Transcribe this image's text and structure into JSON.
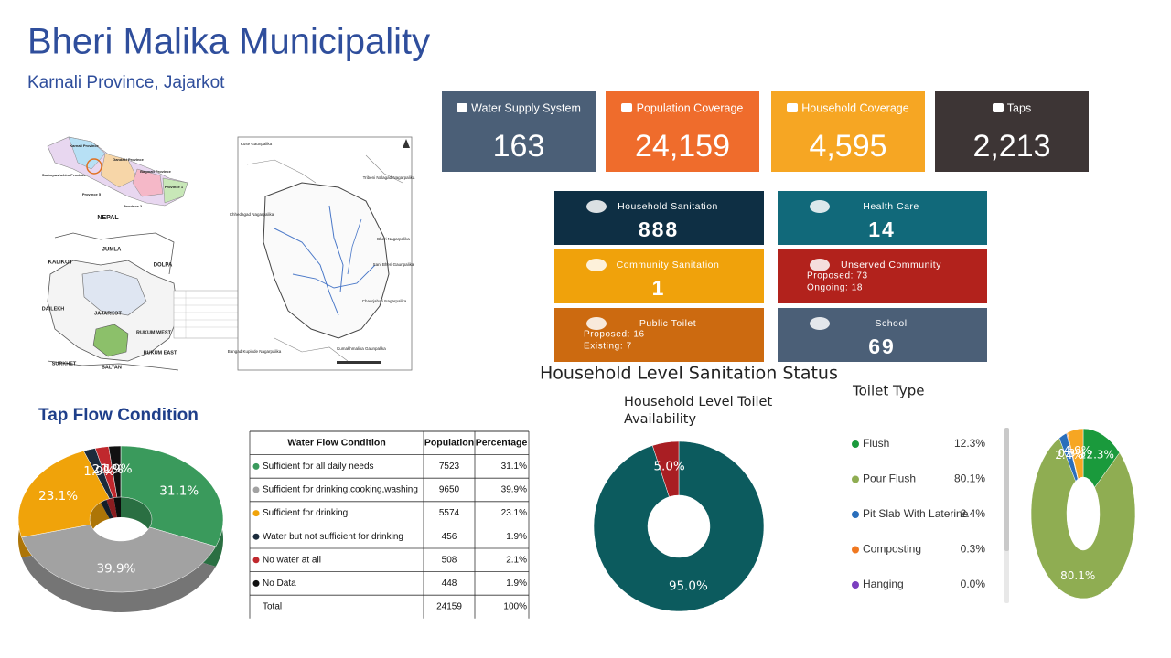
{
  "header": {
    "title": "Bheri Malika Municipality",
    "subtitle": "Karnali Province, Jajarkot"
  },
  "maps": {
    "left_labels": [
      "NEPAL",
      "Karnali Province",
      "Gandaki Province",
      "Bagmati Province",
      "Sudurpashchim Province",
      "Province 1",
      "Province 2",
      "Province 5",
      "JUMLA",
      "KALIKOT",
      "DOLPA",
      "DAILEKH",
      "JAJARKOT",
      "RUKUM WEST",
      "RUKUM EAST",
      "SURKHET",
      "SALYAN"
    ],
    "right_labels": [
      "Kuse Gaunpalika",
      "Chhedagad Nagarpalika",
      "Tribeni Nalagad Nagarpalika",
      "Bheri Nagarpalika",
      "Sani Bheri Gaunpalika",
      "Chaurjahari Nagarpalika",
      "Bangad Kupinde Nagarpalika",
      "Kumakhmalika Gaunpalika"
    ]
  },
  "kpis": [
    {
      "label": "Water Supply System",
      "value": "163",
      "color": "#4b5f77"
    },
    {
      "label": "Population Coverage",
      "value": "24,159",
      "color": "#ef6c2c"
    },
    {
      "label": "Household Coverage",
      "value": "4,595",
      "color": "#f6a623"
    },
    {
      "label": "Taps",
      "value": "2,213",
      "color": "#3d3535"
    }
  ],
  "cards": [
    {
      "label": "Household Sanitation",
      "value": "888",
      "color": "#0e2f44"
    },
    {
      "label": "Health Care",
      "value": "14",
      "color": "#11697a"
    },
    {
      "label": "Community Sanitation",
      "value": "1",
      "color": "#f0a20b"
    },
    {
      "label": "Unserved Community",
      "lines": [
        "Proposed: 73",
        "Ongoing: 18"
      ],
      "color": "#b2221c"
    },
    {
      "label": "Public Toilet",
      "lines": [
        "Proposed: 16",
        "Existing: 7"
      ],
      "color": "#cc6a10"
    },
    {
      "label": "School",
      "value": "69",
      "color": "#4b5f77"
    }
  ],
  "section_title": "Household Level Sanitation Status",
  "table": {
    "header": [
      "Water Flow Condition",
      "Population",
      "Percentage"
    ],
    "rows": [
      [
        "7523",
        "31.1%"
      ],
      [
        "9650",
        "39.9%"
      ],
      [
        "5574",
        "23.1%"
      ],
      [
        "456",
        "1.9%"
      ],
      [
        "508",
        "2.1%"
      ],
      [
        "448",
        "1.9%"
      ]
    ],
    "total": [
      "Total",
      "24159",
      "100%"
    ]
  },
  "chart_data": [
    {
      "type": "pie",
      "style": "3d-donut",
      "title": "Tap Flow Condition",
      "categories": [
        "Sufficient for all daily needs",
        "Sufficient for drinking,cooking,washing",
        "Sufficient for drinking",
        "Water but not sufficient for drinking",
        "No water at all",
        "No Data"
      ],
      "values": [
        31.1,
        39.9,
        23.1,
        1.9,
        2.1,
        1.9
      ],
      "value_labels": [
        "31.1%",
        "39.9%",
        "23.1%",
        "1.9%",
        "2.1%",
        "1.9%"
      ],
      "colors": [
        "#3a9a5c",
        "#a2a2a2",
        "#f0a30a",
        "#1b2b3c",
        "#c0282d",
        "#111111"
      ]
    },
    {
      "type": "pie",
      "style": "donut",
      "title": "Household Level Toilet Availability",
      "values": [
        95.0,
        5.0
      ],
      "value_labels": [
        "95.0%",
        "5.0%"
      ],
      "colors": [
        "#0c5b5e",
        "#a91e23"
      ]
    },
    {
      "type": "pie",
      "style": "donut",
      "title": "Toilet Type",
      "categories": [
        "Flush",
        "Pour Flush",
        "Pit Slab With Laterine",
        "Composting",
        "Hanging",
        null
      ],
      "values": [
        12.3,
        80.1,
        2.4,
        0.3,
        0.0,
        4.9
      ],
      "value_labels": [
        "12.3%",
        "80.1%",
        "2.4%",
        "0.3%",
        "0.0%",
        "4.9%"
      ],
      "colors": [
        "#1a9a3c",
        "#8fad52",
        "#2a6ebb",
        "#f07820",
        "#7b3fbf",
        "#f6a623"
      ]
    }
  ]
}
